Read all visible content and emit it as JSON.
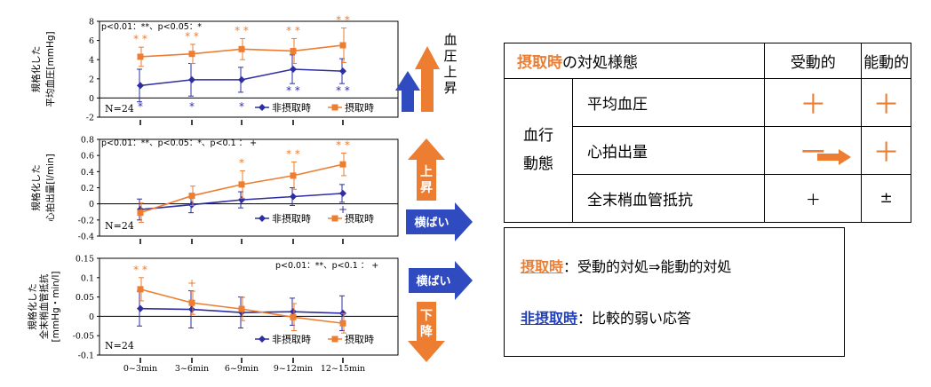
{
  "chart_data": [
    {
      "type": "line",
      "ylabel": [
        "規格化した",
        "平均血圧[mmHg]"
      ],
      "ylim": [
        -2,
        8
      ],
      "yticks": [
        "8",
        "6",
        "4",
        "2",
        "0",
        "-2"
      ],
      "categories": [
        "0~3min",
        "3~6min",
        "6~9min",
        "9~12min",
        "12~15min"
      ],
      "sig_note": "p<0.01：**、p<0.05：*",
      "n_label": "N=24",
      "series": [
        {
          "name": "非摂取時",
          "values": [
            1.3,
            1.9,
            1.9,
            3.0,
            2.8
          ],
          "err": [
            1.7,
            1.7,
            1.3,
            1.5,
            1.3
          ]
        },
        {
          "name": "摂取時",
          "values": [
            4.3,
            4.6,
            5.1,
            4.9,
            5.5
          ],
          "err": [
            1.0,
            1.0,
            1.1,
            1.3,
            1.8
          ]
        }
      ],
      "marks_orange": [
        "* *",
        "* *",
        "* *",
        "* *",
        "* *"
      ],
      "marks_blue": [
        "*",
        "*",
        "*",
        "* *",
        "* *"
      ],
      "marks_below": [
        "'",
        "'",
        "'",
        "'",
        "'"
      ]
    },
    {
      "type": "line",
      "ylabel": [
        "規格化した",
        "心拍出量[l/min]"
      ],
      "ylim": [
        -0.4,
        0.8
      ],
      "yticks": [
        "0.8",
        "0.6",
        "0.4",
        "0.2",
        "0",
        "-0.2",
        "-0.4"
      ],
      "categories": [
        "0~3min",
        "3~6min",
        "6~9min",
        "9~12min",
        "12~15min"
      ],
      "sig_note": "p<0.01：**、p<0.05：*、p<0.1 ： +",
      "n_label": "N=24",
      "series": [
        {
          "name": "非摂取時",
          "values": [
            -0.07,
            -0.01,
            0.05,
            0.09,
            0.13
          ],
          "err": [
            0.13,
            0.1,
            0.1,
            0.11,
            0.11
          ]
        },
        {
          "name": "摂取時",
          "values": [
            -0.11,
            0.1,
            0.24,
            0.35,
            0.49
          ],
          "err": [
            0.12,
            0.12,
            0.17,
            0.17,
            0.14
          ]
        }
      ],
      "marks_orange": [
        "",
        "",
        "*",
        "* *",
        "* *"
      ],
      "marks_blue": [
        "",
        "",
        "",
        "",
        "+"
      ],
      "marks_below": [
        "'",
        "'",
        "'",
        "'",
        "'"
      ]
    },
    {
      "type": "line",
      "ylabel": [
        "規格化した",
        "全末梢血管抵抗",
        "[mmHg・min/l]"
      ],
      "ylim": [
        -0.1,
        0.15
      ],
      "yticks": [
        "0.15",
        "0.1",
        "0.05",
        "0",
        "-0.05",
        "-0.1"
      ],
      "categories": [
        "0~3min",
        "3~6min",
        "6~9min",
        "9~12min",
        "12~15min"
      ],
      "sig_note": "p<0.01：**、p<0.1 ： +",
      "n_label": "N=24",
      "series": [
        {
          "name": "非摂取時",
          "values": [
            0.02,
            0.018,
            0.01,
            0.012,
            0.008
          ],
          "err": [
            0.045,
            0.048,
            0.04,
            0.035,
            0.045
          ]
        },
        {
          "name": "摂取時",
          "values": [
            0.07,
            0.035,
            0.019,
            -0.002,
            -0.018
          ],
          "err": [
            0.03,
            0.03,
            0.03,
            0.035,
            0.025
          ]
        }
      ],
      "marks_orange": [
        "* *",
        "+",
        "",
        "",
        ""
      ],
      "marks_blue": [
        "",
        "",
        "",
        "",
        ""
      ],
      "marks_below": [
        "'",
        "'",
        "'",
        "'",
        "'"
      ]
    }
  ],
  "arrows": {
    "a1_label": "血\n圧\n上\n昇",
    "a2_label": "上\n昇",
    "a3_label": "横ばい",
    "a4_label": "横ばい",
    "a5_label": "下\n降"
  },
  "colors": {
    "orange": "#ED7D31",
    "blue": "#2E2EA0",
    "navy_arrow": "#2F4BBF"
  },
  "table": {
    "head_bold": "摂取時",
    "head_rest": "の対処様態",
    "col_passive": "受動的",
    "col_active": "能動的",
    "group_line1": "血行",
    "group_line2": "動態",
    "rows": [
      {
        "item": "平均血圧",
        "passive": "＋",
        "active": "＋"
      },
      {
        "item": "心拍出量",
        "passive": "ー",
        "active": "＋"
      },
      {
        "item": "全末梢血管抵抗",
        "passive": "＋",
        "active": "±"
      }
    ]
  },
  "summary": {
    "line1_key": "摂取時",
    "line1_rest": "：受動的対処⇒能動的対処",
    "line2_key": "非摂取時",
    "line2_rest": "：比較的弱い応答"
  }
}
